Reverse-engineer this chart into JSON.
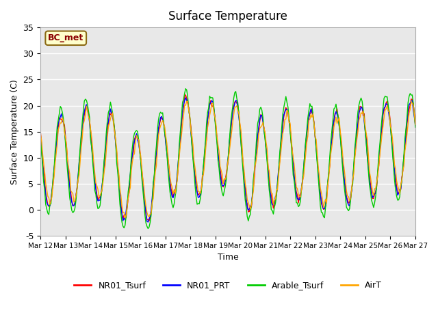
{
  "title": "Surface Temperature",
  "ylabel": "Surface Temperature (C)",
  "xlabel": "Time",
  "ylim": [
    -5,
    35
  ],
  "annotation_text": "BC_met",
  "annotation_color": "#8B0000",
  "annotation_bg": "#FFFFCC",
  "bg_color": "#E8E8E8",
  "grid_color": "#FFFFFF",
  "series_colors": {
    "NR01_Tsurf": "#FF0000",
    "NR01_PRT": "#0000FF",
    "Arable_Tsurf": "#00CC00",
    "AirT": "#FFA500"
  },
  "xtick_labels": [
    "Mar 12",
    "Mar 13",
    "Mar 14",
    "Mar 15",
    "Mar 16",
    "Mar 17",
    "Mar 18",
    "Mar 19",
    "Mar 20",
    "Mar 21",
    "Mar 22",
    "Mar 23",
    "Mar 24",
    "Mar 25",
    "Mar 26",
    "Mar 27"
  ],
  "ytick_labels": [
    -5,
    0,
    5,
    10,
    15,
    20,
    25,
    30,
    35
  ]
}
